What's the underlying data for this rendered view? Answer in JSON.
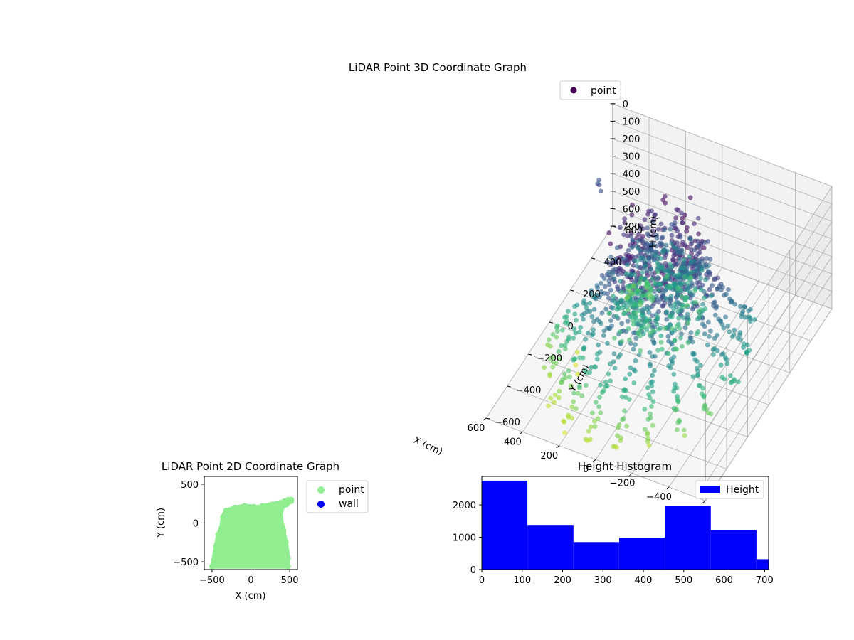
{
  "chart_data": [
    {
      "type": "scatter",
      "title": "LiDAR Point 3D Coordinate Graph",
      "xlabel": "X (cm)",
      "ylabel": "Y (cm)",
      "zlabel": "H (cm)",
      "x_ticks": [
        "−600",
        "−400",
        "−200",
        "0",
        "200",
        "400",
        "600"
      ],
      "y_ticks": [
        "−600",
        "−400",
        "−200",
        "0",
        "200",
        "400",
        "600"
      ],
      "z_ticks": [
        "0",
        "100",
        "200",
        "300",
        "400",
        "500",
        "600",
        "700"
      ],
      "xlim": [
        -600,
        600
      ],
      "ylim": [
        -600,
        600
      ],
      "zlim": [
        0,
        700
      ],
      "z_inverted": true,
      "colormap": "viridis",
      "grid": true,
      "legend": {
        "entries": [
          "point"
        ],
        "placement": "top-right"
      },
      "series": [
        {
          "name": "point",
          "color": "#440154",
          "rays": [
            {
              "angle_deg": 200,
              "r_min": 150,
              "r_max": 550,
              "h_min": 60,
              "h_max": 460
            },
            {
              "angle_deg": 215,
              "r_min": 150,
              "r_max": 550,
              "h_min": 60,
              "h_max": 520
            },
            {
              "angle_deg": 230,
              "r_min": 150,
              "r_max": 560,
              "h_min": 60,
              "h_max": 560
            },
            {
              "angle_deg": 245,
              "r_min": 150,
              "r_max": 570,
              "h_min": 60,
              "h_max": 600
            },
            {
              "angle_deg": 260,
              "r_min": 150,
              "r_max": 580,
              "h_min": 60,
              "h_max": 620
            },
            {
              "angle_deg": 275,
              "r_min": 150,
              "r_max": 590,
              "h_min": 60,
              "h_max": 630
            },
            {
              "angle_deg": 290,
              "r_min": 150,
              "r_max": 580,
              "h_min": 60,
              "h_max": 640
            },
            {
              "angle_deg": 305,
              "r_min": 150,
              "r_max": 560,
              "h_min": 60,
              "h_max": 620
            },
            {
              "angle_deg": 320,
              "r_min": 150,
              "r_max": 540,
              "h_min": 60,
              "h_max": 600
            },
            {
              "angle_deg": 335,
              "r_min": 150,
              "r_max": 520,
              "h_min": 60,
              "h_max": 560
            },
            {
              "angle_deg": 185,
              "r_min": 150,
              "r_max": 520,
              "h_min": 60,
              "h_max": 400
            },
            {
              "angle_deg": 170,
              "r_min": 150,
              "r_max": 480,
              "h_min": 60,
              "h_max": 330
            }
          ],
          "clusters": [
            {
              "x": -50,
              "y": 50,
              "h": 100
            },
            {
              "x": 100,
              "y": 80,
              "h": 200
            },
            {
              "x": 0,
              "y": 100,
              "h": 300
            },
            {
              "x": 150,
              "y": 0,
              "h": 400
            },
            {
              "x": 200,
              "y": 150,
              "h": 500
            },
            {
              "x": -100,
              "y": 120,
              "h": 250
            }
          ],
          "outliers": [
            {
              "x": 500,
              "y": 300,
              "h": 150
            },
            {
              "x": 520,
              "y": 320,
              "h": 170
            },
            {
              "x": 480,
              "y": 280,
              "h": 160
            },
            {
              "x": 530,
              "y": 350,
              "h": 180
            },
            {
              "x": 300,
              "y": -250,
              "h": 650
            },
            {
              "x": 340,
              "y": -200,
              "h": 660
            },
            {
              "x": 360,
              "y": -150,
              "h": 640
            },
            {
              "x": 250,
              "y": -400,
              "h": 560
            }
          ]
        }
      ]
    },
    {
      "type": "scatter",
      "title": "LiDAR Point 2D Coordinate Graph",
      "xlabel": "X (cm)",
      "ylabel": "Y (cm)",
      "x_ticks": [
        -500,
        0,
        500
      ],
      "y_ticks": [
        -500,
        0,
        500
      ],
      "xlim": [
        -600,
        600
      ],
      "ylim": [
        -600,
        600
      ],
      "legend": {
        "entries": [
          "point",
          "wall"
        ],
        "placement": "outside-right"
      },
      "series": [
        {
          "name": "point",
          "color": "#90ee90",
          "outline": [
            [
              -500,
              -560
            ],
            [
              -480,
              -480
            ],
            [
              -450,
              -300
            ],
            [
              -420,
              -150
            ],
            [
              -380,
              -60
            ],
            [
              -360,
              80
            ],
            [
              -320,
              160
            ],
            [
              -200,
              200
            ],
            [
              -80,
              220
            ],
            [
              40,
              210
            ],
            [
              100,
              200
            ],
            [
              150,
              220
            ],
            [
              240,
              230
            ],
            [
              280,
              240
            ],
            [
              330,
              250
            ],
            [
              380,
              260
            ],
            [
              430,
              280
            ],
            [
              480,
              300
            ],
            [
              520,
              300
            ],
            [
              520,
              280
            ],
            [
              460,
              240
            ],
            [
              400,
              200
            ],
            [
              380,
              80
            ],
            [
              420,
              -100
            ],
            [
              450,
              -250
            ],
            [
              480,
              -450
            ],
            [
              480,
              -560
            ]
          ]
        },
        {
          "name": "wall",
          "color": "#0000ff"
        }
      ]
    },
    {
      "type": "bar",
      "title": "Height Histogram",
      "xlabel": "",
      "ylabel": "",
      "bin_edges": [
        0,
        113,
        227,
        340,
        453,
        567,
        680,
        710
      ],
      "values": [
        2750,
        1380,
        850,
        990,
        1960,
        1220,
        320
      ],
      "x_ticks": [
        0,
        100,
        200,
        300,
        400,
        500,
        600,
        700
      ],
      "y_ticks": [
        0,
        1000,
        2000
      ],
      "xlim": [
        0,
        710
      ],
      "ylim": [
        0,
        2880
      ],
      "legend": {
        "entries": [
          "Height"
        ],
        "placement": "top-right"
      },
      "series": [
        {
          "name": "Height",
          "color": "#0000ff"
        }
      ]
    }
  ]
}
